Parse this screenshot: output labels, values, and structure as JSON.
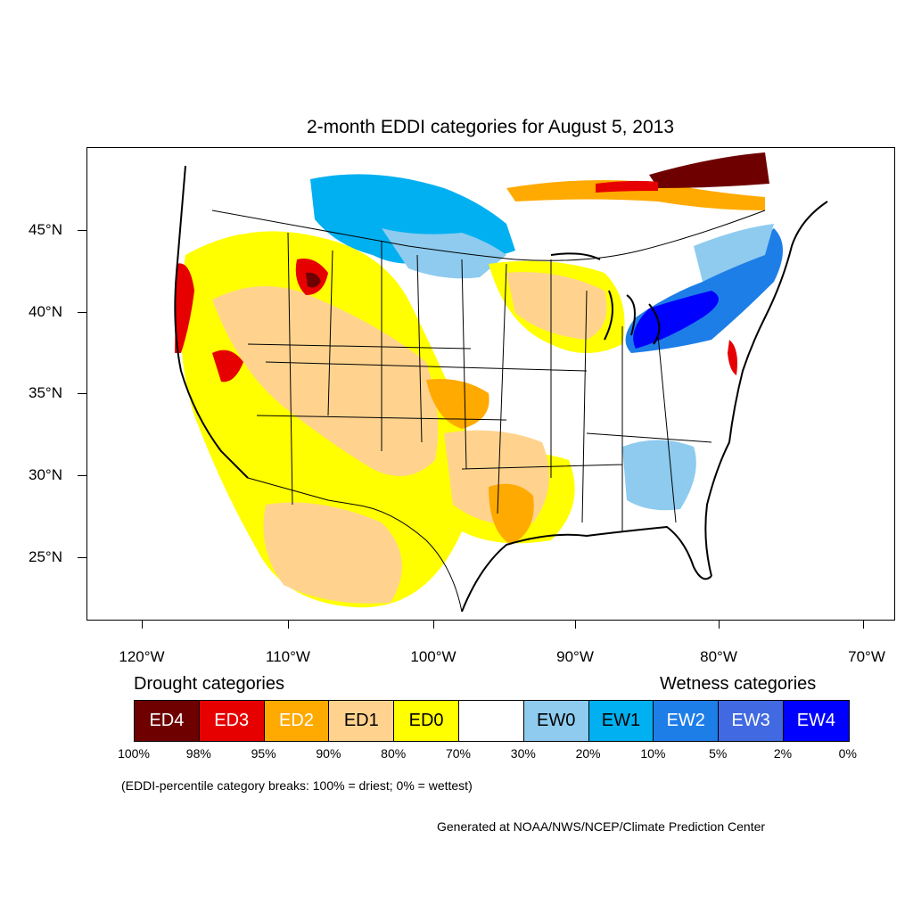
{
  "title": "2-month EDDI categories for August 5, 2013",
  "latitude_labels": [
    "45°N",
    "40°N",
    "35°N",
    "30°N",
    "25°N"
  ],
  "longitude_labels": [
    "120°W",
    "110°W",
    "100°W",
    "90°W",
    "80°W",
    "70°W"
  ],
  "legend": {
    "drought_heading": "Drought categories",
    "wetness_heading": "Wetness categories",
    "categories": [
      {
        "label": "ED4",
        "color": "#6e0000",
        "text_color": "#ffffff"
      },
      {
        "label": "ED3",
        "color": "#e60000",
        "text_color": "#ffffff"
      },
      {
        "label": "ED2",
        "color": "#ffaa00",
        "text_color": "#ffffff"
      },
      {
        "label": "ED1",
        "color": "#ffd38e",
        "text_color": "#000000"
      },
      {
        "label": "ED0",
        "color": "#ffff00",
        "text_color": "#000000"
      },
      {
        "label": "",
        "color": "#ffffff",
        "text_color": "#000000"
      },
      {
        "label": "EW0",
        "color": "#8ecbef",
        "text_color": "#000000"
      },
      {
        "label": "EW1",
        "color": "#00b0f0",
        "text_color": "#000000"
      },
      {
        "label": "EW2",
        "color": "#1e7ee8",
        "text_color": "#ffffff"
      },
      {
        "label": "EW3",
        "color": "#4169e1",
        "text_color": "#ffffff"
      },
      {
        "label": "EW4",
        "color": "#0000ff",
        "text_color": "#ffffff"
      }
    ],
    "percent_breaks": [
      "100%",
      "98%",
      "95%",
      "90%",
      "80%",
      "70%",
      "30%",
      "20%",
      "10%",
      "5%",
      "2%",
      "0%"
    ]
  },
  "note": "(EDDI-percentile category breaks: 100% = driest; 0% = wettest)",
  "credit": "Generated at NOAA/NWS/NCEP/Climate Prediction Center"
}
